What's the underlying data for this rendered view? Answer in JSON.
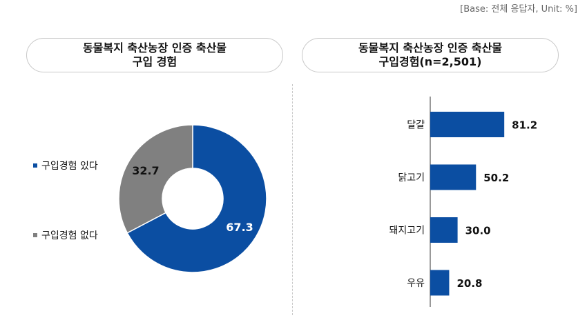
{
  "base_note": "[Base: 전체 응답자, Unit: %]",
  "left_title_line1": "동물복지 축산농장 인증 축산물",
  "left_title_line2": "구입 경험",
  "right_title_line1": "동물복지 축산농장 인증 축산물",
  "right_title_line2": "구입경험(n=2,501)",
  "colors": {
    "blue": "#0b4ea2",
    "gray": "#808080"
  },
  "chart_data": [
    {
      "type": "pie",
      "donut": true,
      "categories": [
        "구입경험 있다",
        "구입경험 없다"
      ],
      "values": [
        67.3,
        32.7
      ],
      "labels": [
        "67.3",
        "32.7"
      ],
      "colors": [
        "#0b4ea2",
        "#808080"
      ],
      "legend": "left"
    },
    {
      "type": "bar",
      "orientation": "horizontal",
      "categories": [
        "달걀",
        "닭고기",
        "돼지고기",
        "우유"
      ],
      "values": [
        81.2,
        50.2,
        30.0,
        20.8
      ],
      "labels": [
        "81.2",
        "50.2",
        "30.0",
        "20.8"
      ],
      "color": "#0b4ea2",
      "xlim": [
        0,
        100
      ]
    }
  ]
}
